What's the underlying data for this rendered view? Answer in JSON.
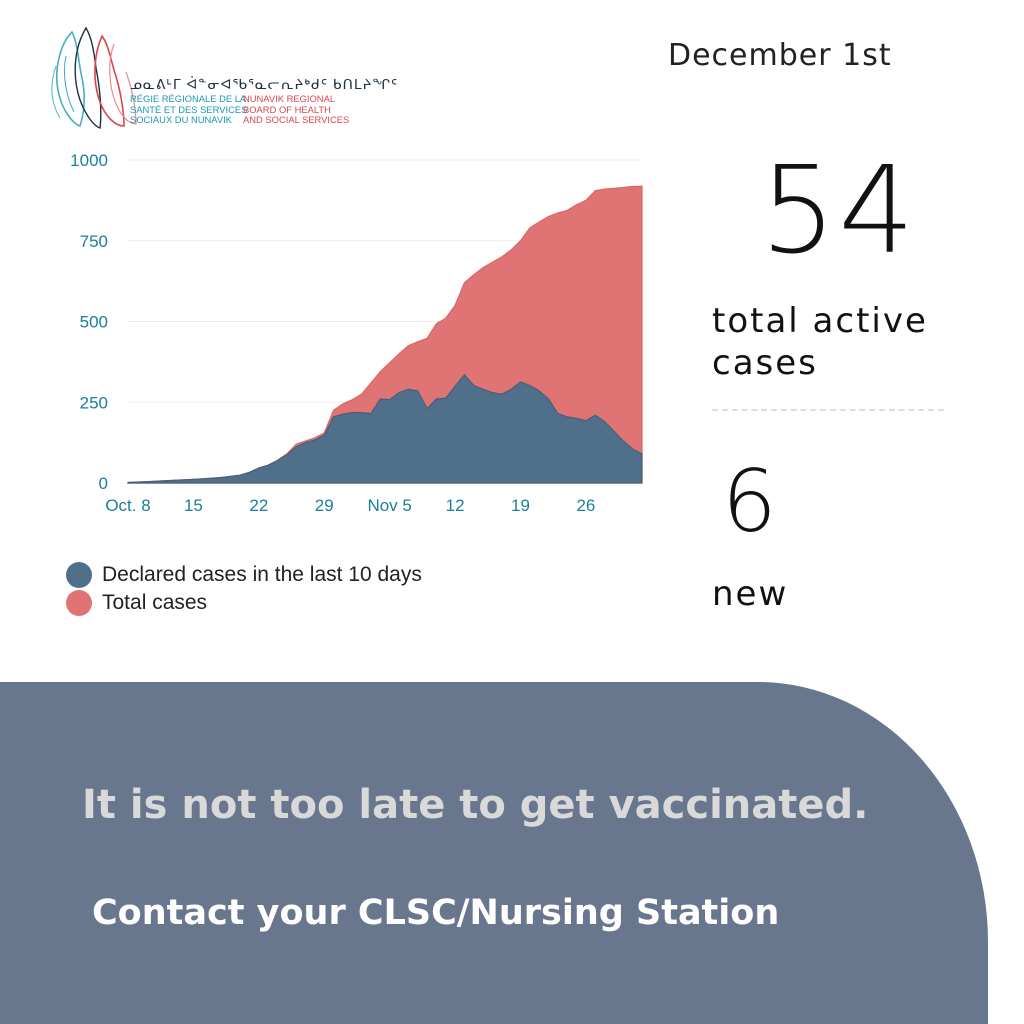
{
  "logo": {
    "syllabics": "ᓄᓇᕕᒻᒥ ᐋᓐᓂᐊᖃᕐᓇᓕᕆᔨᒃᑯᑦ ᑲᑎᒪᔨᖏᑦ",
    "fr_lines": [
      "RÉGIE RÉGIONALE DE LA",
      "SANTÉ ET DES SERVICES",
      "SOCIAUX DU NUNAVIK"
    ],
    "en_lines": [
      "NUNAVIK REGIONAL",
      "BOARD OF HEALTH",
      "AND SOCIAL SERVICES"
    ]
  },
  "date": "December 1st",
  "active_cases": {
    "value": "54",
    "label": "total active cases"
  },
  "new_cases": {
    "value": "6",
    "label": "new"
  },
  "banner": {
    "line1": "It is not too late to get vaccinated.",
    "line2": "Contact your CLSC/Nursing Station"
  },
  "colors": {
    "declared": "#4f6f8b",
    "total": "#e07474",
    "axis_text": "#1a7f99",
    "banner": "#68778e"
  },
  "chart_data": {
    "type": "area",
    "ylim": [
      0,
      1000
    ],
    "yticks": [
      0,
      250,
      500,
      750,
      1000
    ],
    "x_ticks": [
      {
        "day": 0,
        "label": "Oct. 8"
      },
      {
        "day": 7,
        "label": "15"
      },
      {
        "day": 14,
        "label": "22"
      },
      {
        "day": 21,
        "label": "29"
      },
      {
        "day": 28,
        "label": "Nov 5"
      },
      {
        "day": 35,
        "label": "12"
      },
      {
        "day": 42,
        "label": "19"
      },
      {
        "day": 49,
        "label": "26"
      }
    ],
    "x_range": [
      0,
      55
    ],
    "series": [
      {
        "name": "Total cases",
        "color": "#e07474",
        "points": [
          [
            0,
            2
          ],
          [
            2,
            4
          ],
          [
            4,
            7
          ],
          [
            6,
            10
          ],
          [
            8,
            13
          ],
          [
            10,
            17
          ],
          [
            12,
            24
          ],
          [
            13,
            33
          ],
          [
            14,
            46
          ],
          [
            15,
            55
          ],
          [
            16,
            70
          ],
          [
            17,
            90
          ],
          [
            18,
            120
          ],
          [
            19,
            130
          ],
          [
            20,
            140
          ],
          [
            21,
            155
          ],
          [
            22,
            225
          ],
          [
            23,
            245
          ],
          [
            24,
            258
          ],
          [
            25,
            275
          ],
          [
            26,
            310
          ],
          [
            27,
            345
          ],
          [
            28,
            372
          ],
          [
            29,
            400
          ],
          [
            30,
            425
          ],
          [
            31,
            437
          ],
          [
            32,
            448
          ],
          [
            33,
            493
          ],
          [
            34,
            510
          ],
          [
            35,
            550
          ],
          [
            36,
            620
          ],
          [
            37,
            645
          ],
          [
            38,
            667
          ],
          [
            39,
            684
          ],
          [
            40,
            700
          ],
          [
            41,
            722
          ],
          [
            42,
            750
          ],
          [
            43,
            790
          ],
          [
            44,
            808
          ],
          [
            45,
            825
          ],
          [
            46,
            836
          ],
          [
            47,
            844
          ],
          [
            48,
            862
          ],
          [
            49,
            875
          ],
          [
            50,
            905
          ],
          [
            51,
            910
          ],
          [
            52,
            912
          ],
          [
            53,
            915
          ],
          [
            54,
            918
          ],
          [
            55,
            919
          ]
        ]
      },
      {
        "name": "Declared cases in the last 10 days",
        "color": "#4f6f8b",
        "points": [
          [
            0,
            2
          ],
          [
            2,
            4
          ],
          [
            4,
            7
          ],
          [
            6,
            10
          ],
          [
            8,
            13
          ],
          [
            10,
            17
          ],
          [
            12,
            24
          ],
          [
            13,
            33
          ],
          [
            14,
            46
          ],
          [
            15,
            55
          ],
          [
            16,
            70
          ],
          [
            17,
            88
          ],
          [
            18,
            112
          ],
          [
            19,
            125
          ],
          [
            20,
            133
          ],
          [
            21,
            148
          ],
          [
            22,
            205
          ],
          [
            23,
            213
          ],
          [
            24,
            218
          ],
          [
            25,
            218
          ],
          [
            26,
            215
          ],
          [
            27,
            260
          ],
          [
            28,
            258
          ],
          [
            29,
            280
          ],
          [
            30,
            290
          ],
          [
            31,
            285
          ],
          [
            32,
            230
          ],
          [
            33,
            260
          ],
          [
            34,
            263
          ],
          [
            35,
            300
          ],
          [
            36,
            335
          ],
          [
            37,
            302
          ],
          [
            38,
            290
          ],
          [
            39,
            280
          ],
          [
            40,
            275
          ],
          [
            41,
            290
          ],
          [
            42,
            313
          ],
          [
            43,
            302
          ],
          [
            44,
            285
          ],
          [
            45,
            260
          ],
          [
            46,
            215
          ],
          [
            47,
            205
          ],
          [
            48,
            200
          ],
          [
            49,
            193
          ],
          [
            50,
            210
          ],
          [
            51,
            190
          ],
          [
            52,
            160
          ],
          [
            53,
            130
          ],
          [
            54,
            105
          ],
          [
            55,
            90
          ]
        ]
      }
    ]
  }
}
